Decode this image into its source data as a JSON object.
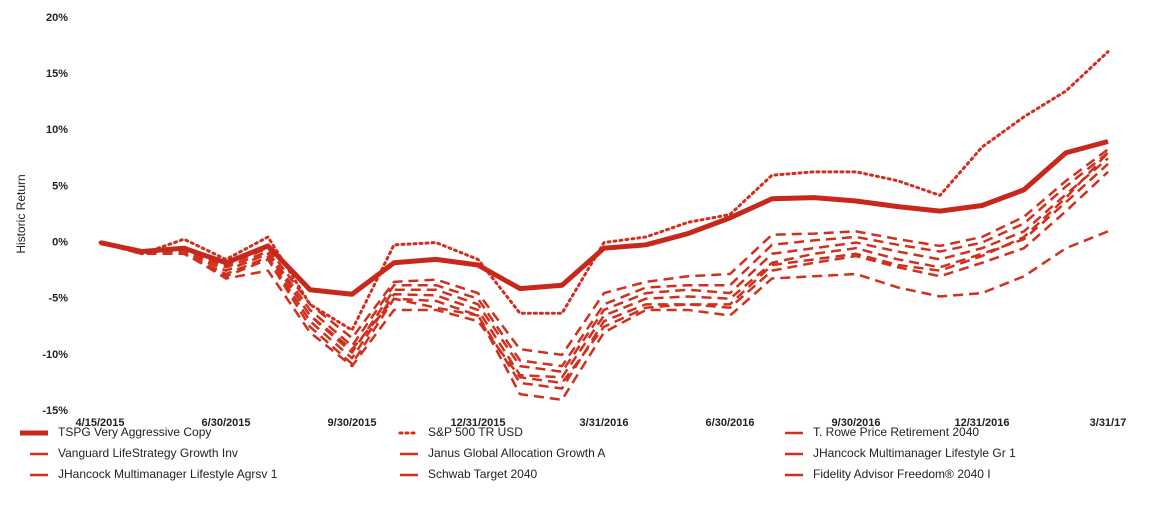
{
  "chart_data": {
    "type": "line",
    "y_label": "Historic Return",
    "categories": [
      "4/15/2015",
      null,
      null,
      "6/30/2015",
      null,
      null,
      "9/30/2015",
      null,
      null,
      "12/31/2015",
      null,
      null,
      "3/31/2016",
      null,
      null,
      "6/30/2016",
      null,
      null,
      "9/30/2016",
      null,
      null,
      "12/31/2016",
      null,
      null,
      "3/31/17"
    ],
    "ylim": [
      -15,
      20
    ],
    "yticks": [
      {
        "value": -15,
        "label": "-15%"
      },
      {
        "value": -10,
        "label": "-10%"
      },
      {
        "value": -5,
        "label": "-5%"
      },
      {
        "value": 0,
        "label": "0%"
      },
      {
        "value": 5,
        "label": "5%"
      },
      {
        "value": 10,
        "label": "10%"
      },
      {
        "value": 15,
        "label": "15%"
      },
      {
        "value": 20,
        "label": "20%"
      }
    ],
    "grid": false,
    "series": [
      {
        "name": "TSPG Very Aggressive Copy",
        "color": "#c8281c",
        "style": "solid",
        "values": [
          0,
          -0.8,
          -0.5,
          -1.8,
          -0.3,
          -4.2,
          -4.6,
          -1.8,
          -1.5,
          -2,
          -4.1,
          -3.8,
          -0.5,
          -0.2,
          0.8,
          2.2,
          3.9,
          4,
          3.7,
          3.2,
          2.8,
          3.3,
          4.7,
          8,
          9
        ]
      },
      {
        "name": "S&P 500 TR USD",
        "color": "#d0301e",
        "style": "dotted",
        "values": [
          0,
          -1,
          0.3,
          -1.5,
          0.5,
          -5.5,
          -7.8,
          -0.2,
          0,
          -1.5,
          -6.3,
          -6.3,
          0,
          0.5,
          1.8,
          2.5,
          6,
          6.3,
          6.3,
          5.5,
          4.2,
          8.5,
          11.2,
          13.5,
          17
        ]
      },
      {
        "name": "T. Rowe Price Retirement 2040",
        "color": "#d0301e",
        "style": "dashed",
        "values": [
          0,
          -0.9,
          -0.6,
          -2,
          -0.5,
          -5.5,
          -8.5,
          -3.5,
          -3.3,
          -4.5,
          -9.5,
          -10,
          -4.5,
          -3.5,
          -3,
          -2.8,
          0.7,
          0.8,
          1,
          0.3,
          -0.3,
          0.5,
          2.3,
          5.5,
          8.3
        ]
      },
      {
        "name": "Vanguard LifeStrategy Growth Inv",
        "color": "#d0301e",
        "style": "dashed",
        "values": [
          0,
          -0.9,
          -0.7,
          -2.2,
          -0.8,
          -6,
          -9.2,
          -3.8,
          -3.8,
          -5,
          -10.5,
          -11,
          -5.5,
          -4,
          -3.8,
          -3.8,
          -0.2,
          0.2,
          0.5,
          -0.2,
          -0.8,
          0,
          1.7,
          5,
          8
        ]
      },
      {
        "name": "Janus Global Allocation Growth A",
        "color": "#d0301e",
        "style": "dashed",
        "values": [
          0,
          -1,
          -0.8,
          -2.5,
          -1,
          -6.5,
          -9.8,
          -4.2,
          -4.2,
          -5.5,
          -11,
          -11.5,
          -6,
          -4.5,
          -4.2,
          -4.5,
          -1,
          -0.5,
          0,
          -0.8,
          -1.5,
          -0.5,
          1,
          4.3,
          7.5
        ]
      },
      {
        "name": "JHancock Multimanager Lifestyle Gr 1",
        "color": "#d0301e",
        "style": "dashed",
        "values": [
          0,
          -1,
          -1,
          -2.8,
          -1.3,
          -7,
          -10.3,
          -4.6,
          -4.7,
          -6,
          -11.8,
          -12,
          -6.5,
          -5,
          -4.8,
          -5,
          -1.8,
          -1,
          -0.5,
          -1.5,
          -2.2,
          -1,
          0.3,
          3.6,
          7
        ]
      },
      {
        "name": "JHancock Multimanager Lifestyle Agrsv 1",
        "color": "#d0301e",
        "style": "dashed",
        "values": [
          0,
          -1,
          -1,
          -3,
          -1.5,
          -7.5,
          -10.8,
          -5,
          -5.2,
          -6.5,
          -12.5,
          -13,
          -7,
          -5.5,
          -5.5,
          -5.8,
          -2.5,
          -1.8,
          -1.2,
          -2.2,
          -3,
          -1.8,
          -0.5,
          2.8,
          6.3
        ]
      },
      {
        "name": "Schwab Target 2040",
        "color": "#d0301e",
        "style": "dashed",
        "values": [
          0,
          -1,
          -0.8,
          -2.5,
          -1,
          -6.5,
          -9.5,
          -5,
          -5.8,
          -6.5,
          -13.5,
          -14,
          -8,
          -6,
          -6,
          -6.5,
          -3.2,
          -3,
          -2.8,
          -4,
          -4.8,
          -4.5,
          -3,
          -0.5,
          1
        ]
      },
      {
        "name": "Fidelity Advisor Freedom® 2040 I",
        "color": "#d0301e",
        "style": "dashed",
        "values": [
          0,
          -1,
          -0.9,
          -3.2,
          -2.5,
          -8,
          -11,
          -6,
          -6,
          -7,
          -12,
          -12.5,
          -7.5,
          -5.8,
          -5.5,
          -5.5,
          -2,
          -1.5,
          -1,
          -2,
          -2.5,
          -1.2,
          0.5,
          4,
          8
        ]
      }
    ]
  }
}
